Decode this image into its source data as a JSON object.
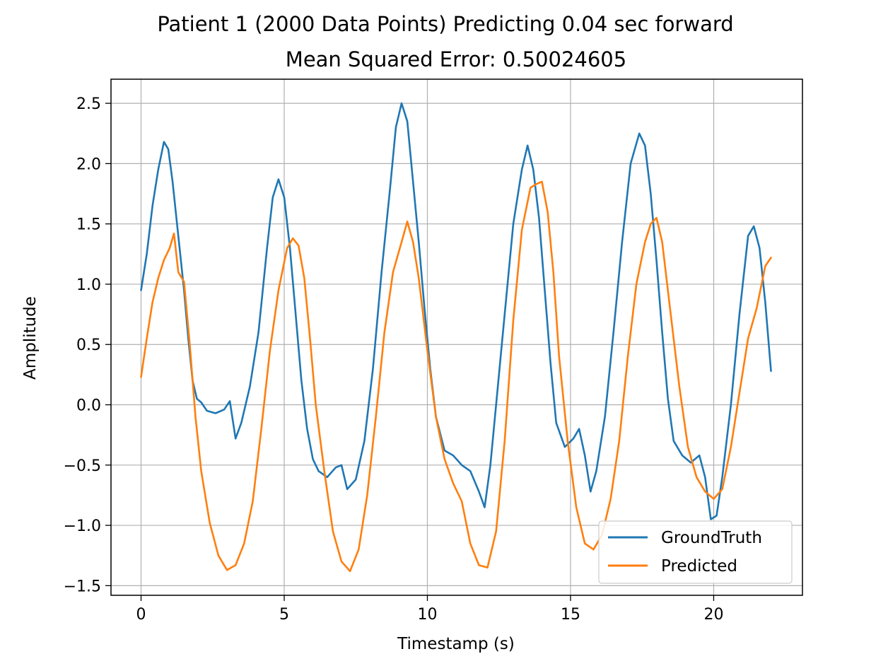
{
  "chart_data": {
    "type": "line",
    "title": "Patient 1 (2000 Data Points) Predicting 0.04 sec forward",
    "subtitle": "Mean Squared Error: 0.50024605",
    "xlabel": "Timestamp (s)",
    "ylabel": "Amplitude",
    "xlim": [
      -1.05,
      23.1
    ],
    "ylim": [
      -1.58,
      2.7
    ],
    "xticks": [
      0,
      5,
      10,
      15,
      20
    ],
    "xtick_labels": [
      "0",
      "5",
      "10",
      "15",
      "20"
    ],
    "yticks": [
      -1.5,
      -1.0,
      -0.5,
      0.0,
      0.5,
      1.0,
      1.5,
      2.0,
      2.5
    ],
    "ytick_labels": [
      "−1.5",
      "−1.0",
      "−0.5",
      "0.0",
      "0.5",
      "1.0",
      "1.5",
      "2.0",
      "2.5"
    ],
    "grid": true,
    "legend_position": "lower-right",
    "series": [
      {
        "name": "GroundTruth",
        "color": "#1f77b4",
        "points": [
          [
            0.0,
            0.95
          ],
          [
            0.2,
            1.25
          ],
          [
            0.4,
            1.65
          ],
          [
            0.6,
            1.95
          ],
          [
            0.8,
            2.18
          ],
          [
            0.95,
            2.12
          ],
          [
            1.1,
            1.85
          ],
          [
            1.3,
            1.4
          ],
          [
            1.5,
            0.95
          ],
          [
            1.65,
            0.55
          ],
          [
            1.8,
            0.2
          ],
          [
            1.95,
            0.05
          ],
          [
            2.1,
            0.02
          ],
          [
            2.3,
            -0.05
          ],
          [
            2.6,
            -0.07
          ],
          [
            2.9,
            -0.04
          ],
          [
            3.1,
            0.03
          ],
          [
            3.3,
            -0.28
          ],
          [
            3.5,
            -0.15
          ],
          [
            3.8,
            0.15
          ],
          [
            4.1,
            0.6
          ],
          [
            4.4,
            1.3
          ],
          [
            4.6,
            1.72
          ],
          [
            4.8,
            1.87
          ],
          [
            5.0,
            1.72
          ],
          [
            5.2,
            1.3
          ],
          [
            5.4,
            0.75
          ],
          [
            5.6,
            0.2
          ],
          [
            5.8,
            -0.2
          ],
          [
            6.0,
            -0.45
          ],
          [
            6.2,
            -0.55
          ],
          [
            6.5,
            -0.6
          ],
          [
            6.8,
            -0.52
          ],
          [
            7.0,
            -0.5
          ],
          [
            7.2,
            -0.7
          ],
          [
            7.5,
            -0.62
          ],
          [
            7.8,
            -0.3
          ],
          [
            8.1,
            0.3
          ],
          [
            8.4,
            1.1
          ],
          [
            8.7,
            1.8
          ],
          [
            8.9,
            2.3
          ],
          [
            9.1,
            2.5
          ],
          [
            9.3,
            2.35
          ],
          [
            9.5,
            1.85
          ],
          [
            9.7,
            1.35
          ],
          [
            9.9,
            0.8
          ],
          [
            10.1,
            0.3
          ],
          [
            10.3,
            -0.1
          ],
          [
            10.6,
            -0.38
          ],
          [
            10.9,
            -0.42
          ],
          [
            11.2,
            -0.5
          ],
          [
            11.5,
            -0.55
          ],
          [
            11.8,
            -0.72
          ],
          [
            12.0,
            -0.85
          ],
          [
            12.2,
            -0.5
          ],
          [
            12.4,
            0.0
          ],
          [
            12.7,
            0.75
          ],
          [
            13.0,
            1.5
          ],
          [
            13.3,
            1.95
          ],
          [
            13.5,
            2.15
          ],
          [
            13.7,
            1.95
          ],
          [
            13.9,
            1.55
          ],
          [
            14.1,
            0.95
          ],
          [
            14.3,
            0.35
          ],
          [
            14.5,
            -0.15
          ],
          [
            14.8,
            -0.35
          ],
          [
            15.1,
            -0.28
          ],
          [
            15.3,
            -0.2
          ],
          [
            15.5,
            -0.42
          ],
          [
            15.7,
            -0.72
          ],
          [
            15.9,
            -0.55
          ],
          [
            16.2,
            -0.1
          ],
          [
            16.5,
            0.6
          ],
          [
            16.8,
            1.35
          ],
          [
            17.1,
            2.0
          ],
          [
            17.4,
            2.25
          ],
          [
            17.6,
            2.15
          ],
          [
            17.8,
            1.75
          ],
          [
            18.0,
            1.2
          ],
          [
            18.2,
            0.6
          ],
          [
            18.4,
            0.05
          ],
          [
            18.6,
            -0.3
          ],
          [
            18.9,
            -0.42
          ],
          [
            19.2,
            -0.48
          ],
          [
            19.5,
            -0.42
          ],
          [
            19.7,
            -0.6
          ],
          [
            19.9,
            -0.95
          ],
          [
            20.1,
            -0.92
          ],
          [
            20.3,
            -0.6
          ],
          [
            20.6,
            0.0
          ],
          [
            20.9,
            0.75
          ],
          [
            21.2,
            1.4
          ],
          [
            21.4,
            1.48
          ],
          [
            21.6,
            1.3
          ],
          [
            21.8,
            0.85
          ],
          [
            22.0,
            0.28
          ]
        ]
      },
      {
        "name": "Predicted",
        "color": "#ff7f0e",
        "points": [
          [
            0.0,
            0.23
          ],
          [
            0.2,
            0.55
          ],
          [
            0.4,
            0.85
          ],
          [
            0.6,
            1.05
          ],
          [
            0.8,
            1.2
          ],
          [
            1.0,
            1.3
          ],
          [
            1.15,
            1.42
          ],
          [
            1.3,
            1.1
          ],
          [
            1.5,
            1.02
          ],
          [
            1.7,
            0.5
          ],
          [
            1.9,
            -0.1
          ],
          [
            2.1,
            -0.55
          ],
          [
            2.4,
            -0.98
          ],
          [
            2.7,
            -1.25
          ],
          [
            3.0,
            -1.37
          ],
          [
            3.3,
            -1.33
          ],
          [
            3.6,
            -1.15
          ],
          [
            3.9,
            -0.8
          ],
          [
            4.2,
            -0.2
          ],
          [
            4.5,
            0.45
          ],
          [
            4.8,
            0.95
          ],
          [
            5.1,
            1.3
          ],
          [
            5.3,
            1.38
          ],
          [
            5.5,
            1.32
          ],
          [
            5.7,
            1.05
          ],
          [
            5.9,
            0.55
          ],
          [
            6.1,
            0.0
          ],
          [
            6.4,
            -0.55
          ],
          [
            6.7,
            -1.05
          ],
          [
            7.0,
            -1.3
          ],
          [
            7.3,
            -1.38
          ],
          [
            7.6,
            -1.2
          ],
          [
            7.9,
            -0.75
          ],
          [
            8.2,
            -0.1
          ],
          [
            8.5,
            0.6
          ],
          [
            8.8,
            1.1
          ],
          [
            9.1,
            1.35
          ],
          [
            9.3,
            1.52
          ],
          [
            9.5,
            1.35
          ],
          [
            9.7,
            1.05
          ],
          [
            10.0,
            0.45
          ],
          [
            10.3,
            -0.1
          ],
          [
            10.6,
            -0.45
          ],
          [
            10.9,
            -0.65
          ],
          [
            11.2,
            -0.8
          ],
          [
            11.5,
            -1.15
          ],
          [
            11.8,
            -1.33
          ],
          [
            12.1,
            -1.35
          ],
          [
            12.4,
            -1.05
          ],
          [
            12.7,
            -0.3
          ],
          [
            13.0,
            0.7
          ],
          [
            13.3,
            1.45
          ],
          [
            13.6,
            1.8
          ],
          [
            13.8,
            1.83
          ],
          [
            14.0,
            1.85
          ],
          [
            14.2,
            1.6
          ],
          [
            14.4,
            1.1
          ],
          [
            14.6,
            0.4
          ],
          [
            14.9,
            -0.3
          ],
          [
            15.2,
            -0.85
          ],
          [
            15.5,
            -1.15
          ],
          [
            15.8,
            -1.2
          ],
          [
            16.1,
            -1.08
          ],
          [
            16.4,
            -0.78
          ],
          [
            16.7,
            -0.3
          ],
          [
            17.0,
            0.4
          ],
          [
            17.3,
            1.0
          ],
          [
            17.6,
            1.35
          ],
          [
            17.8,
            1.5
          ],
          [
            18.0,
            1.55
          ],
          [
            18.2,
            1.35
          ],
          [
            18.5,
            0.75
          ],
          [
            18.8,
            0.15
          ],
          [
            19.1,
            -0.35
          ],
          [
            19.4,
            -0.6
          ],
          [
            19.7,
            -0.72
          ],
          [
            20.0,
            -0.78
          ],
          [
            20.3,
            -0.7
          ],
          [
            20.6,
            -0.35
          ],
          [
            20.9,
            0.1
          ],
          [
            21.2,
            0.55
          ],
          [
            21.5,
            0.8
          ],
          [
            21.8,
            1.15
          ],
          [
            22.0,
            1.22
          ]
        ]
      }
    ]
  }
}
